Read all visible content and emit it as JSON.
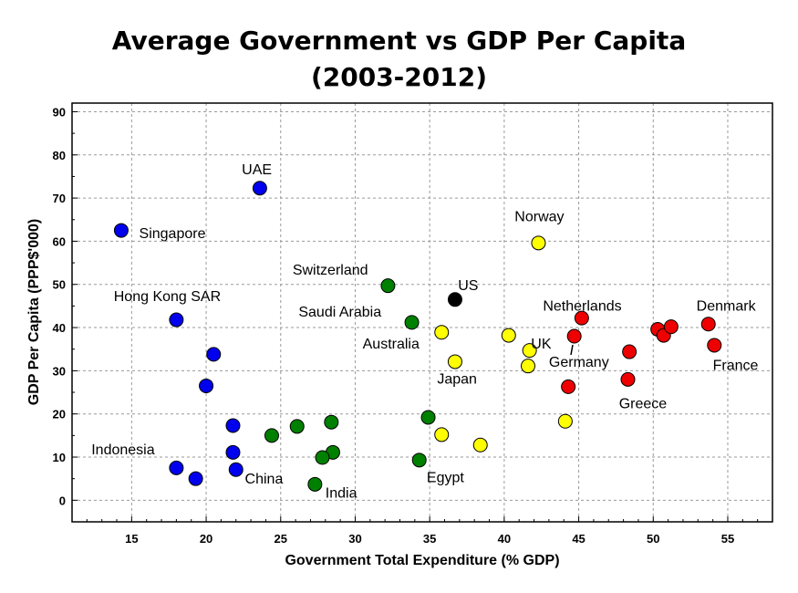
{
  "chart_data": {
    "type": "scatter",
    "title_line1": "Average Government vs GDP Per Capita",
    "title_line2": "(2003-2012)",
    "xlabel": "Government Total Expenditure (% GDP)",
    "ylabel": "GDP Per Capita (PPP$'000)",
    "xlim": [
      11,
      58
    ],
    "ylim": [
      -5,
      92
    ],
    "x_ticks": [
      15,
      20,
      25,
      30,
      35,
      40,
      45,
      50,
      55
    ],
    "y_ticks": [
      0,
      10,
      20,
      30,
      40,
      50,
      60,
      70,
      80,
      90
    ],
    "grid": true,
    "colors": {
      "blue": "#0000ee",
      "green": "#008000",
      "black": "#000000",
      "yellow": "#ffff00",
      "red": "#ee0000"
    },
    "points": [
      {
        "x": 14.3,
        "y": 62.5,
        "color": "blue"
      },
      {
        "x": 23.6,
        "y": 72.3,
        "color": "blue"
      },
      {
        "x": 18.0,
        "y": 41.8,
        "color": "blue"
      },
      {
        "x": 20.5,
        "y": 33.8,
        "color": "blue"
      },
      {
        "x": 20.0,
        "y": 26.5,
        "color": "blue"
      },
      {
        "x": 21.8,
        "y": 17.3,
        "color": "blue"
      },
      {
        "x": 21.8,
        "y": 11.1,
        "color": "blue"
      },
      {
        "x": 22.0,
        "y": 7.1,
        "color": "blue"
      },
      {
        "x": 18.0,
        "y": 7.5,
        "color": "blue"
      },
      {
        "x": 19.3,
        "y": 5.0,
        "color": "blue"
      },
      {
        "x": 32.2,
        "y": 49.7,
        "color": "green"
      },
      {
        "x": 33.8,
        "y": 41.2,
        "color": "green"
      },
      {
        "x": 24.4,
        "y": 15.0,
        "color": "green"
      },
      {
        "x": 26.1,
        "y": 17.1,
        "color": "green"
      },
      {
        "x": 28.4,
        "y": 18.1,
        "color": "green"
      },
      {
        "x": 28.5,
        "y": 11.1,
        "color": "green"
      },
      {
        "x": 27.8,
        "y": 9.9,
        "color": "green"
      },
      {
        "x": 27.3,
        "y": 3.7,
        "color": "green"
      },
      {
        "x": 34.9,
        "y": 19.2,
        "color": "green"
      },
      {
        "x": 34.3,
        "y": 9.3,
        "color": "green"
      },
      {
        "x": 36.7,
        "y": 46.5,
        "color": "black"
      },
      {
        "x": 42.3,
        "y": 59.6,
        "color": "yellow"
      },
      {
        "x": 35.8,
        "y": 38.9,
        "color": "yellow"
      },
      {
        "x": 36.7,
        "y": 32.1,
        "color": "yellow"
      },
      {
        "x": 40.3,
        "y": 38.2,
        "color": "yellow"
      },
      {
        "x": 41.7,
        "y": 34.7,
        "color": "yellow"
      },
      {
        "x": 41.6,
        "y": 31.1,
        "color": "yellow"
      },
      {
        "x": 35.8,
        "y": 15.2,
        "color": "yellow"
      },
      {
        "x": 38.4,
        "y": 12.8,
        "color": "yellow"
      },
      {
        "x": 44.1,
        "y": 18.3,
        "color": "yellow"
      },
      {
        "x": 45.2,
        "y": 42.2,
        "color": "red"
      },
      {
        "x": 44.7,
        "y": 38.0,
        "color": "red"
      },
      {
        "x": 44.3,
        "y": 26.3,
        "color": "red"
      },
      {
        "x": 48.4,
        "y": 34.4,
        "color": "red"
      },
      {
        "x": 48.3,
        "y": 28.0,
        "color": "red"
      },
      {
        "x": 50.3,
        "y": 39.6,
        "color": "red"
      },
      {
        "x": 50.7,
        "y": 38.2,
        "color": "red"
      },
      {
        "x": 51.2,
        "y": 40.2,
        "color": "red"
      },
      {
        "x": 53.7,
        "y": 40.8,
        "color": "red"
      },
      {
        "x": 54.1,
        "y": 35.9,
        "color": "red"
      }
    ],
    "annotations": [
      {
        "text": "UAE",
        "x": 23.4,
        "y": 75.5,
        "anchor": "middle"
      },
      {
        "text": "Singapore",
        "x": 15.5,
        "y": 60.7,
        "anchor": "start"
      },
      {
        "text": "Hong Kong SAR",
        "x": 13.8,
        "y": 46.1,
        "anchor": "start"
      },
      {
        "text": "Indonesia",
        "x": 12.3,
        "y": 10.6,
        "anchor": "start"
      },
      {
        "text": "China",
        "x": 22.6,
        "y": 3.9,
        "anchor": "start"
      },
      {
        "text": "Switzerland",
        "x": 25.8,
        "y": 52.3,
        "anchor": "start"
      },
      {
        "text": "Saudi Arabia",
        "x": 26.2,
        "y": 42.5,
        "anchor": "start"
      },
      {
        "text": "India",
        "x": 28.0,
        "y": 0.6,
        "anchor": "start"
      },
      {
        "text": "US",
        "x": 36.9,
        "y": 48.7,
        "anchor": "start"
      },
      {
        "text": "Australia",
        "x": 30.5,
        "y": 35.2,
        "anchor": "start"
      },
      {
        "text": "Japan",
        "x": 35.5,
        "y": 27.0,
        "anchor": "start"
      },
      {
        "text": "Egypt",
        "x": 34.8,
        "y": 4.2,
        "anchor": "start"
      },
      {
        "text": "Norway",
        "x": 40.7,
        "y": 64.6,
        "anchor": "start"
      },
      {
        "text": "UK",
        "x": 41.8,
        "y": 35.2,
        "anchor": "start"
      },
      {
        "text": "Netherlands",
        "x": 42.6,
        "y": 43.9,
        "anchor": "start"
      },
      {
        "text": "Germany",
        "x": 43.0,
        "y": 30.9,
        "anchor": "start"
      },
      {
        "text": "Greece",
        "x": 47.7,
        "y": 21.3,
        "anchor": "start"
      },
      {
        "text": "Denmark",
        "x": 52.9,
        "y": 43.9,
        "anchor": "start"
      },
      {
        "text": "France",
        "x": 54.0,
        "y": 30.2,
        "anchor": "start"
      }
    ]
  }
}
